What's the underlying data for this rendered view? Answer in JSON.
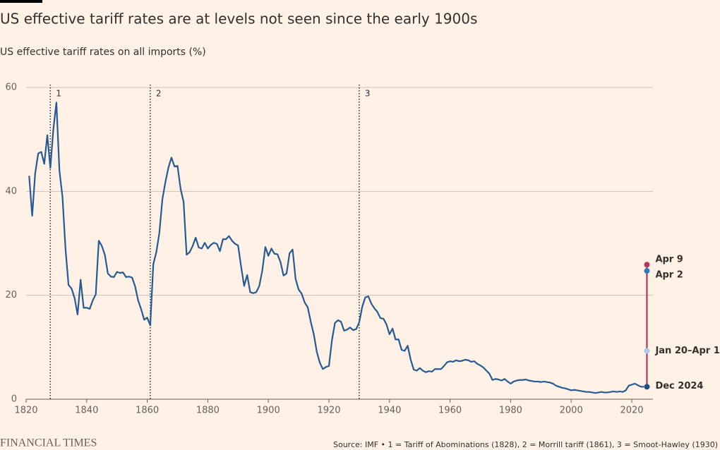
{
  "header": {
    "title": "US effective tariff rates are at levels not seen since the early 1900s",
    "subtitle": "US effective tariff rates on all imports (%)"
  },
  "chart_data": {
    "type": "line",
    "x": [
      1821,
      1822,
      1823,
      1824,
      1825,
      1826,
      1827,
      1828,
      1829,
      1830,
      1831,
      1832,
      1833,
      1834,
      1835,
      1836,
      1837,
      1838,
      1839,
      1840,
      1841,
      1842,
      1843,
      1844,
      1845,
      1846,
      1847,
      1848,
      1849,
      1850,
      1851,
      1852,
      1853,
      1854,
      1855,
      1856,
      1857,
      1858,
      1859,
      1860,
      1861,
      1862,
      1863,
      1864,
      1865,
      1866,
      1867,
      1868,
      1869,
      1870,
      1871,
      1872,
      1873,
      1874,
      1875,
      1876,
      1877,
      1878,
      1879,
      1880,
      1881,
      1882,
      1883,
      1884,
      1885,
      1886,
      1887,
      1888,
      1889,
      1890,
      1891,
      1892,
      1893,
      1894,
      1895,
      1896,
      1897,
      1898,
      1899,
      1900,
      1901,
      1902,
      1903,
      1904,
      1905,
      1906,
      1907,
      1908,
      1909,
      1910,
      1911,
      1912,
      1913,
      1914,
      1915,
      1916,
      1917,
      1918,
      1919,
      1920,
      1921,
      1922,
      1923,
      1924,
      1925,
      1926,
      1927,
      1928,
      1929,
      1930,
      1931,
      1932,
      1933,
      1934,
      1935,
      1936,
      1937,
      1938,
      1939,
      1940,
      1941,
      1942,
      1943,
      1944,
      1945,
      1946,
      1947,
      1948,
      1949,
      1950,
      1951,
      1952,
      1953,
      1954,
      1955,
      1956,
      1957,
      1958,
      1959,
      1960,
      1961,
      1962,
      1963,
      1964,
      1965,
      1966,
      1967,
      1968,
      1969,
      1970,
      1971,
      1972,
      1973,
      1974,
      1975,
      1976,
      1977,
      1978,
      1979,
      1980,
      1981,
      1982,
      1983,
      1984,
      1985,
      1986,
      1987,
      1988,
      1989,
      1990,
      1991,
      1992,
      1993,
      1994,
      1995,
      1996,
      1997,
      1998,
      1999,
      2000,
      2001,
      2002,
      2003,
      2004,
      2005,
      2006,
      2007,
      2008,
      2009,
      2010,
      2011,
      2012,
      2013,
      2014,
      2015,
      2016,
      2017,
      2018,
      2019,
      2020,
      2021,
      2022,
      2023,
      2024
    ],
    "series": [
      {
        "color": "#265a94",
        "values": [
          43,
          35.3,
          43.5,
          47.3,
          47.6,
          45.3,
          50.8,
          44.5,
          52,
          57.1,
          44,
          39,
          29,
          22,
          21.3,
          19.5,
          16.3,
          23,
          17.6,
          17.6,
          17.4,
          19,
          20.2,
          30.5,
          29.5,
          27.8,
          24.2,
          23.6,
          23.5,
          24.5,
          24.3,
          24.4,
          23.5,
          23.6,
          23.4,
          21.7,
          19,
          17.3,
          15.3,
          15.7,
          14.2,
          26,
          28.3,
          32,
          38.5,
          41.8,
          44.6,
          46.5,
          44.8,
          44.9,
          40.5,
          38,
          27.8,
          28.3,
          29.5,
          31.1,
          29.2,
          29,
          30.1,
          29,
          29.7,
          30.1,
          29.9,
          28.5,
          30.8,
          30.8,
          31.4,
          30.5,
          29.9,
          29.6,
          25.5,
          21.8,
          23.9,
          20.6,
          20.4,
          20.6,
          21.8,
          24.8,
          29.3,
          27.6,
          29,
          28,
          27.9,
          26.4,
          23.8,
          24.2,
          28.1,
          28.8,
          23.1,
          21.1,
          20.3,
          18.6,
          17.7,
          14.9,
          12.5,
          9.1,
          7,
          5.8,
          6.2,
          6.4,
          11.4,
          14.7,
          15.2,
          14.9,
          13.2,
          13.4,
          13.8,
          13.3,
          13.5,
          14.8,
          17.8,
          19.6,
          19.8,
          18.4,
          17.5,
          16.8,
          15.6,
          15.5,
          14.4,
          12.5,
          13.6,
          11.5,
          11.5,
          9.5,
          9.3,
          10.3,
          7.6,
          5.7,
          5.5,
          6,
          5.5,
          5.2,
          5.4,
          5.3,
          5.8,
          5.8,
          5.8,
          6.4,
          7.1,
          7.3,
          7.2,
          7.5,
          7.3,
          7.4,
          7.6,
          7.5,
          7.2,
          7.3,
          6.8,
          6.5,
          6.1,
          5.5,
          4.9,
          3.7,
          3.9,
          3.8,
          3.6,
          3.9,
          3.4,
          3,
          3.4,
          3.6,
          3.7,
          3.7,
          3.8,
          3.6,
          3.5,
          3.4,
          3.4,
          3.3,
          3.4,
          3.3,
          3.2,
          3,
          2.6,
          2.4,
          2.2,
          2.1,
          1.9,
          1.7,
          1.8,
          1.7,
          1.6,
          1.5,
          1.4,
          1.4,
          1.3,
          1.2,
          1.3,
          1.4,
          1.3,
          1.3,
          1.4,
          1.5,
          1.4,
          1.5,
          1.4,
          1.7,
          2.6,
          2.8,
          3,
          2.7,
          2.4,
          2.4
        ]
      }
    ],
    "recent": {
      "color": "#b8345a",
      "x": [
        2025,
        2025,
        2025,
        2025
      ],
      "values": [
        2.4,
        9.3,
        24.7,
        25.9
      ],
      "labels": [
        "Dec 2024",
        "Jan 20–Apr 1",
        "Apr 2",
        "Apr 9"
      ],
      "colors": [
        "#1f4e85",
        "#a8c8ec",
        "#2f78bd",
        "#b8345a"
      ]
    },
    "annotations": [
      {
        "x": 1828,
        "label": "1"
      },
      {
        "x": 1861,
        "label": "2"
      },
      {
        "x": 1930,
        "label": "3"
      }
    ],
    "xlim": [
      1820,
      2027
    ],
    "xticks": [
      1820,
      1840,
      1860,
      1880,
      1900,
      1920,
      1940,
      1960,
      1980,
      2000,
      2020
    ],
    "ylim": [
      0,
      60
    ],
    "yticks": [
      0,
      20,
      40,
      60
    ],
    "grid": true
  },
  "footer": {
    "brand": "FINANCIAL TIMES",
    "source": "Source: IMF • 1 = Tariff of Abominations (1828), 2 = Morrill tariff (1861), 3 = Smoot-Hawley (1930)"
  }
}
